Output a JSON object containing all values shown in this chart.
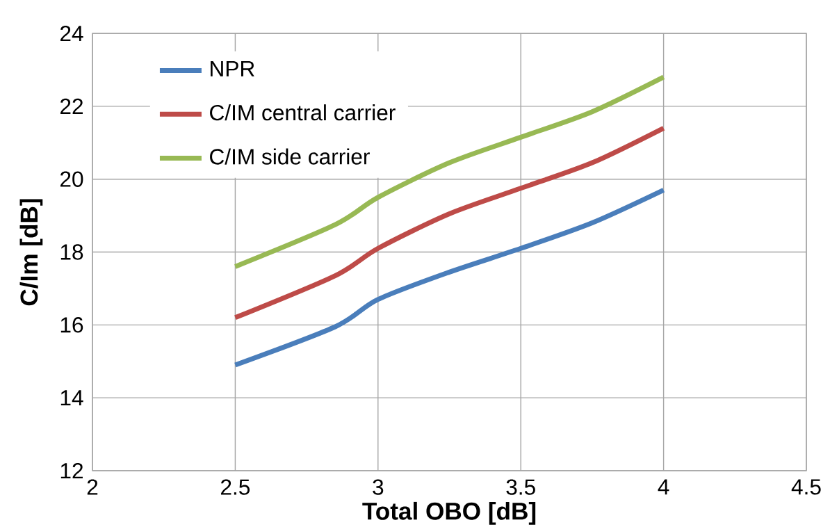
{
  "chart_data": {
    "type": "line",
    "xlabel": "Total OBO [dB]",
    "ylabel": "C/Im [dB]",
    "xlim": [
      2,
      4.5
    ],
    "ylim": [
      12,
      24
    ],
    "xticks": [
      2,
      2.5,
      3,
      3.5,
      4,
      4.5
    ],
    "yticks": [
      12,
      14,
      16,
      18,
      20,
      22,
      24
    ],
    "grid": true,
    "legend": "top left",
    "x": [
      2.5,
      2.85,
      3,
      3.25,
      3.5,
      3.75,
      4
    ],
    "series": [
      {
        "name": "NPR",
        "color": "#4a7ebb",
        "values": [
          14.9,
          15.95,
          16.7,
          17.45,
          18.1,
          18.8,
          19.7
        ]
      },
      {
        "name": "C/IM central carrier",
        "color": "#be4b48",
        "values": [
          16.2,
          17.35,
          18.1,
          19.05,
          19.75,
          20.45,
          21.4
        ]
      },
      {
        "name": "C/IM side carrier",
        "color": "#98b954",
        "values": [
          17.6,
          18.75,
          19.5,
          20.45,
          21.15,
          21.85,
          22.8
        ]
      }
    ]
  }
}
